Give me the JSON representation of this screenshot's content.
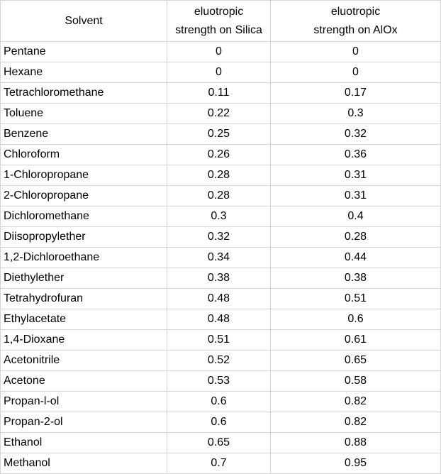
{
  "headers": {
    "solvent": "Solvent",
    "silica_line1": "eluotropic",
    "silica_line2": "strength on Silica",
    "alox_line1": "eluotropic",
    "alox_line2": "strength on AlOx"
  },
  "rows": [
    {
      "solvent": "Pentane",
      "silica": "0",
      "alox": "0"
    },
    {
      "solvent": "Hexane",
      "silica": "0",
      "alox": "0"
    },
    {
      "solvent": "Tetrachloromethane",
      "silica": "0.11",
      "alox": "0.17"
    },
    {
      "solvent": "Toluene",
      "silica": "0.22",
      "alox": "0.3"
    },
    {
      "solvent": "Benzene",
      "silica": "0.25",
      "alox": "0.32"
    },
    {
      "solvent": "Chloroform",
      "silica": "0.26",
      "alox": "0.36"
    },
    {
      "solvent": "1-Chloropropane",
      "silica": "0.28",
      "alox": "0.31"
    },
    {
      "solvent": "2-Chloropropane",
      "silica": "0.28",
      "alox": "0.31"
    },
    {
      "solvent": "Dichloromethane",
      "silica": "0.3",
      "alox": "0.4"
    },
    {
      "solvent": "Diisopropylether",
      "silica": "0.32",
      "alox": "0.28"
    },
    {
      "solvent": "1,2-Dichloroethane",
      "silica": "0.34",
      "alox": "0.44"
    },
    {
      "solvent": "Diethylether",
      "silica": "0.38",
      "alox": "0.38"
    },
    {
      "solvent": "Tetrahydrofuran",
      "silica": "0.48",
      "alox": "0.51"
    },
    {
      "solvent": "Ethylacetate",
      "silica": "0.48",
      "alox": "0.6"
    },
    {
      "solvent": "1,4-Dioxane",
      "silica": "0.51",
      "alox": "0.61"
    },
    {
      "solvent": "Acetonitrile",
      "silica": "0.52",
      "alox": "0.65"
    },
    {
      "solvent": "Acetone",
      "silica": "0.53",
      "alox": "0.58"
    },
    {
      "solvent": "Propan-l-ol",
      "silica": "0.6",
      "alox": "0.82"
    },
    {
      "solvent": "Propan-2-ol",
      "silica": "0.6",
      "alox": "0.82"
    },
    {
      "solvent": "Ethanol",
      "silica": "0.65",
      "alox": "0.88"
    },
    {
      "solvent": "Methanol",
      "silica": "0.7",
      "alox": "0.95"
    }
  ]
}
